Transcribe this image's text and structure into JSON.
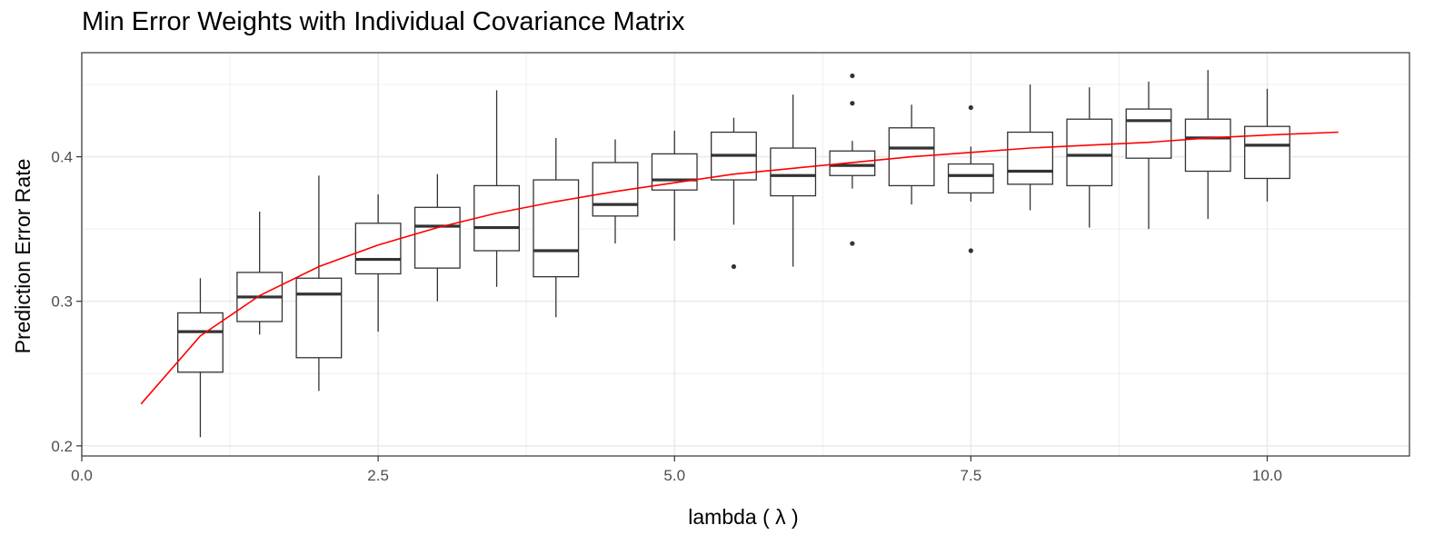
{
  "chart_data": {
    "type": "boxplot",
    "title": "Min Error Weights with Individual Covariance Matrix",
    "xlabel": "lambda ( λ )",
    "ylabel": "Prediction Error Rate",
    "xlim": [
      0,
      11.2
    ],
    "ylim": [
      0.193,
      0.472
    ],
    "x_ticks": [
      {
        "value": 0,
        "label": "0.0"
      },
      {
        "value": 2.5,
        "label": "2.5"
      },
      {
        "value": 5,
        "label": "5.0"
      },
      {
        "value": 7.5,
        "label": "7.5"
      },
      {
        "value": 10,
        "label": "10.0"
      }
    ],
    "y_ticks": [
      {
        "value": 0.2,
        "label": "0.2"
      },
      {
        "value": 0.3,
        "label": "0.3"
      },
      {
        "value": 0.4,
        "label": "0.4"
      }
    ],
    "grid": true,
    "box_width": 0.38,
    "boxes": [
      {
        "x": 1.0,
        "lower_whisker": 0.206,
        "q1": 0.251,
        "median": 0.279,
        "q3": 0.292,
        "upper_whisker": 0.316,
        "outliers": []
      },
      {
        "x": 1.5,
        "lower_whisker": 0.277,
        "q1": 0.286,
        "median": 0.303,
        "q3": 0.32,
        "upper_whisker": 0.362,
        "outliers": []
      },
      {
        "x": 2.0,
        "lower_whisker": 0.238,
        "q1": 0.261,
        "median": 0.305,
        "q3": 0.316,
        "upper_whisker": 0.387,
        "outliers": []
      },
      {
        "x": 2.5,
        "lower_whisker": 0.279,
        "q1": 0.319,
        "median": 0.329,
        "q3": 0.354,
        "upper_whisker": 0.374,
        "outliers": []
      },
      {
        "x": 3.0,
        "lower_whisker": 0.3,
        "q1": 0.323,
        "median": 0.352,
        "q3": 0.365,
        "upper_whisker": 0.388,
        "outliers": []
      },
      {
        "x": 3.5,
        "lower_whisker": 0.31,
        "q1": 0.335,
        "median": 0.351,
        "q3": 0.38,
        "upper_whisker": 0.446,
        "outliers": []
      },
      {
        "x": 4.0,
        "lower_whisker": 0.289,
        "q1": 0.317,
        "median": 0.335,
        "q3": 0.384,
        "upper_whisker": 0.413,
        "outliers": []
      },
      {
        "x": 4.5,
        "lower_whisker": 0.34,
        "q1": 0.359,
        "median": 0.367,
        "q3": 0.396,
        "upper_whisker": 0.412,
        "outliers": []
      },
      {
        "x": 5.0,
        "lower_whisker": 0.342,
        "q1": 0.377,
        "median": 0.384,
        "q3": 0.402,
        "upper_whisker": 0.418,
        "outliers": []
      },
      {
        "x": 5.5,
        "lower_whisker": 0.353,
        "q1": 0.384,
        "median": 0.401,
        "q3": 0.417,
        "upper_whisker": 0.427,
        "outliers": [
          0.324
        ]
      },
      {
        "x": 6.0,
        "lower_whisker": 0.324,
        "q1": 0.373,
        "median": 0.387,
        "q3": 0.406,
        "upper_whisker": 0.443,
        "outliers": []
      },
      {
        "x": 6.5,
        "lower_whisker": 0.378,
        "q1": 0.387,
        "median": 0.394,
        "q3": 0.404,
        "upper_whisker": 0.411,
        "outliers": [
          0.34,
          0.437,
          0.456
        ]
      },
      {
        "x": 7.0,
        "lower_whisker": 0.367,
        "q1": 0.38,
        "median": 0.406,
        "q3": 0.42,
        "upper_whisker": 0.436,
        "outliers": []
      },
      {
        "x": 7.5,
        "lower_whisker": 0.369,
        "q1": 0.375,
        "median": 0.387,
        "q3": 0.395,
        "upper_whisker": 0.407,
        "outliers": [
          0.335,
          0.434
        ]
      },
      {
        "x": 8.0,
        "lower_whisker": 0.363,
        "q1": 0.381,
        "median": 0.39,
        "q3": 0.417,
        "upper_whisker": 0.45,
        "outliers": []
      },
      {
        "x": 8.5,
        "lower_whisker": 0.351,
        "q1": 0.38,
        "median": 0.401,
        "q3": 0.426,
        "upper_whisker": 0.448,
        "outliers": []
      },
      {
        "x": 9.0,
        "lower_whisker": 0.35,
        "q1": 0.399,
        "median": 0.425,
        "q3": 0.433,
        "upper_whisker": 0.452,
        "outliers": []
      },
      {
        "x": 9.5,
        "lower_whisker": 0.357,
        "q1": 0.39,
        "median": 0.413,
        "q3": 0.426,
        "upper_whisker": 0.46,
        "outliers": []
      },
      {
        "x": 10.0,
        "lower_whisker": 0.369,
        "q1": 0.385,
        "median": 0.408,
        "q3": 0.421,
        "upper_whisker": 0.447,
        "outliers": []
      }
    ],
    "fit_line": {
      "color": "#ff0000",
      "x": [
        0.5,
        1.0,
        1.5,
        2.0,
        2.5,
        3.0,
        3.5,
        4.0,
        4.5,
        5.0,
        5.5,
        6.0,
        6.5,
        7.0,
        7.5,
        8.0,
        8.5,
        9.0,
        9.5,
        10.0,
        10.6
      ],
      "y": [
        0.229,
        0.276,
        0.304,
        0.324,
        0.339,
        0.351,
        0.361,
        0.369,
        0.376,
        0.382,
        0.388,
        0.392,
        0.396,
        0.4,
        0.403,
        0.406,
        0.408,
        0.41,
        0.413,
        0.415,
        0.417
      ]
    },
    "box_color": "#333333",
    "grid_color": "#ebebeb"
  }
}
